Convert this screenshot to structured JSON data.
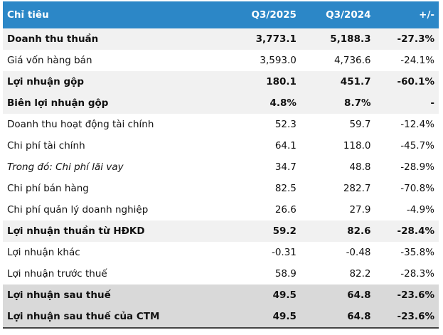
{
  "table": {
    "header": [
      "Chỉ tiêu",
      "Q3/2025",
      "Q3/2024",
      "+/-"
    ],
    "rows": [
      [
        "Doanh thu thuần",
        "3,773.1",
        "5,188.3",
        "-27.3%"
      ],
      [
        "Giá vốn hàng bán",
        "3,593.0",
        "4,736.6",
        "-24.1%"
      ],
      [
        "Lợi nhuận gộp",
        "180.1",
        "451.7",
        "-60.1%"
      ],
      [
        "Biên lợi nhuận gộp",
        "4.8%",
        "8.7%",
        "-"
      ],
      [
        "Doanh thu hoạt động tài chính",
        "52.3",
        "59.7",
        "-12.4%"
      ],
      [
        "Chi phí tài chính",
        "64.1",
        "118.0",
        "-45.7%"
      ],
      [
        "Trong đó: Chi phí lãi vay",
        "34.7",
        "48.8",
        "-28.9%"
      ],
      [
        "Chi phí bán hàng",
        "82.5",
        "282.7",
        "-70.8%"
      ],
      [
        "Chi phí quản lý doanh nghiệp",
        "26.6",
        "27.9",
        "-4.9%"
      ],
      [
        "Lợi nhuận thuần từ HĐKD",
        "59.2",
        "82.6",
        "-28.4%"
      ],
      [
        "Lợi nhuận khác",
        "-0.31",
        "-0.48",
        "-35.8%"
      ],
      [
        "Lợi nhuận trước thuế",
        "58.9",
        "82.2",
        "-28.3%"
      ],
      [
        "Lợi nhuận sau thuế",
        "49.5",
        "64.8",
        "-23.6%"
      ],
      [
        "Lợi nhuận sau thuế của CTM",
        "49.5",
        "64.8",
        "-23.6%"
      ]
    ]
  }
}
